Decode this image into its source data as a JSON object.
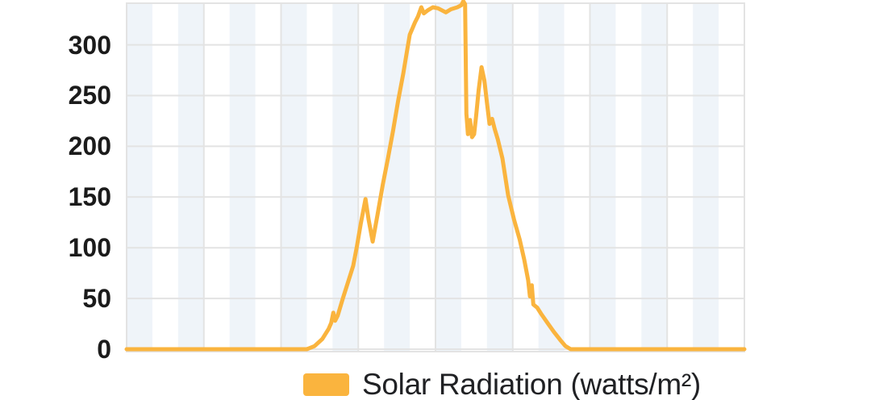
{
  "legend": {
    "label": "Solar Radiation (watts/m²)",
    "swatch_color": "#FAB43E"
  },
  "colors": {
    "line": "#FAB43E",
    "stripe": "#EFF4F9",
    "grid": "#E3E3E3",
    "tick_text": "#1B1B1B",
    "legend_text": "#202124",
    "background": "#FFFFFF"
  },
  "y_axis": {
    "tick_labels": [
      "300",
      "250",
      "200",
      "150",
      "100",
      "50",
      "0"
    ]
  },
  "chart_data": {
    "type": "line",
    "title": "",
    "xlabel": "",
    "ylabel": "",
    "legend_position": "bottom",
    "grid": true,
    "background_stripes": true,
    "x_axis_labels_visible": false,
    "x_columns": 24,
    "x_gridline_interval": 3,
    "x_range": [
      0,
      24
    ],
    "ylim": [
      0,
      341
    ],
    "yticks": [
      0,
      50,
      100,
      150,
      200,
      250,
      300
    ],
    "series": [
      {
        "name": "Solar Radiation (watts/m²)",
        "color": "#FAB43E",
        "points": [
          [
            0,
            0
          ],
          [
            7.0,
            0
          ],
          [
            7.3,
            3
          ],
          [
            7.6,
            10
          ],
          [
            7.85,
            20
          ],
          [
            7.95,
            26
          ],
          [
            8.03,
            36
          ],
          [
            8.1,
            28
          ],
          [
            8.2,
            33
          ],
          [
            8.4,
            50
          ],
          [
            8.6,
            66
          ],
          [
            8.8,
            82
          ],
          [
            8.95,
            102
          ],
          [
            9.1,
            124
          ],
          [
            9.28,
            148
          ],
          [
            9.4,
            128
          ],
          [
            9.56,
            106
          ],
          [
            9.75,
            133
          ],
          [
            9.95,
            162
          ],
          [
            10.15,
            188
          ],
          [
            10.35,
            215
          ],
          [
            10.55,
            245
          ],
          [
            10.75,
            272
          ],
          [
            10.9,
            295
          ],
          [
            11.0,
            310
          ],
          [
            11.1,
            316
          ],
          [
            11.2,
            322
          ],
          [
            11.32,
            328
          ],
          [
            11.45,
            337
          ],
          [
            11.55,
            331
          ],
          [
            11.7,
            334
          ],
          [
            11.9,
            337
          ],
          [
            12.1,
            336
          ],
          [
            12.4,
            332
          ],
          [
            12.6,
            335
          ],
          [
            12.85,
            337
          ],
          [
            13.0,
            339
          ],
          [
            13.08,
            343
          ],
          [
            13.15,
            340
          ],
          [
            13.2,
            232
          ],
          [
            13.26,
            212
          ],
          [
            13.34,
            226
          ],
          [
            13.42,
            209
          ],
          [
            13.5,
            212
          ],
          [
            13.58,
            230
          ],
          [
            13.68,
            256
          ],
          [
            13.79,
            278
          ],
          [
            13.9,
            265
          ],
          [
            14.0,
            243
          ],
          [
            14.1,
            222
          ],
          [
            14.2,
            227
          ],
          [
            14.3,
            217
          ],
          [
            14.42,
            207
          ],
          [
            14.6,
            188
          ],
          [
            14.82,
            152
          ],
          [
            15.05,
            128
          ],
          [
            15.27,
            108
          ],
          [
            15.45,
            88
          ],
          [
            15.6,
            68
          ],
          [
            15.67,
            52
          ],
          [
            15.74,
            63
          ],
          [
            15.8,
            44
          ],
          [
            15.95,
            41
          ],
          [
            16.1,
            35
          ],
          [
            16.35,
            26
          ],
          [
            16.6,
            17
          ],
          [
            16.85,
            9
          ],
          [
            17.05,
            3
          ],
          [
            17.25,
            0
          ],
          [
            24,
            0
          ]
        ]
      }
    ]
  }
}
